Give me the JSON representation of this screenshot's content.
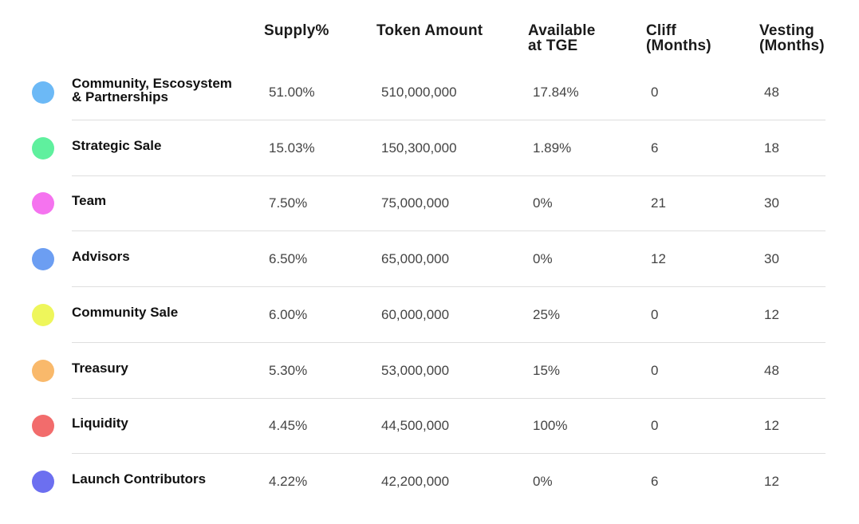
{
  "table": {
    "headers": [
      {
        "lines": [
          "Supply%"
        ]
      },
      {
        "lines": [
          "Token Amount"
        ]
      },
      {
        "lines": [
          "Available",
          "at TGE"
        ]
      },
      {
        "lines": [
          "Cliff",
          "(Months)"
        ]
      },
      {
        "lines": [
          "Vesting",
          "(Months)"
        ]
      }
    ],
    "rows": [
      {
        "color": "#6cb9f6",
        "label": [
          "Community, Escosystem",
          "& Partnerships"
        ],
        "cells": [
          "51.00%",
          "510,000,000",
          "17.84%",
          "0",
          "48"
        ]
      },
      {
        "color": "#5ff09e",
        "label": [
          "Strategic Sale"
        ],
        "cells": [
          "15.03%",
          "150,300,000",
          "1.89%",
          "6",
          "18"
        ]
      },
      {
        "color": "#f573ef",
        "label": [
          "Team"
        ],
        "cells": [
          "7.50%",
          "75,000,000",
          "0%",
          "21",
          "30"
        ]
      },
      {
        "color": "#6c9ef2",
        "label": [
          "Advisors"
        ],
        "cells": [
          "6.50%",
          "65,000,000",
          "0%",
          "12",
          "30"
        ]
      },
      {
        "color": "#eef65b",
        "label": [
          "Community Sale"
        ],
        "cells": [
          "6.00%",
          "60,000,000",
          "25%",
          "0",
          "12"
        ]
      },
      {
        "color": "#f9b96b",
        "label": [
          "Treasury"
        ],
        "cells": [
          "5.30%",
          "53,000,000",
          "15%",
          "0",
          "48"
        ]
      },
      {
        "color": "#f26c6c",
        "label": [
          "Liquidity"
        ],
        "cells": [
          "4.45%",
          "44,500,000",
          "100%",
          "0",
          "12"
        ]
      },
      {
        "color": "#6c6ff0",
        "label": [
          "Launch Contributors"
        ],
        "cells": [
          "4.22%",
          "42,200,000",
          "0%",
          "6",
          "12"
        ]
      }
    ]
  }
}
